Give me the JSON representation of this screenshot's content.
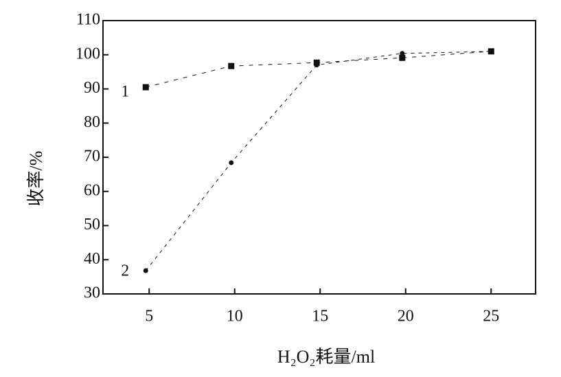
{
  "chart_data": {
    "type": "scatter",
    "x_label": "H₂O₂耗量/ml",
    "y_label": "收率/%",
    "xlim": [
      2.3,
      27.6
    ],
    "ylim": [
      30,
      110
    ],
    "xticks": [
      5,
      10,
      15,
      20,
      25
    ],
    "yticks": [
      30,
      40,
      50,
      60,
      70,
      80,
      90,
      100,
      110
    ],
    "series": [
      {
        "name": "1",
        "color": "#111111",
        "marker": "square",
        "x": [
          4.8,
          9.8,
          14.8,
          19.8,
          25
        ],
        "values": [
          90.5,
          96.7,
          97.7,
          99.1,
          101
        ]
      },
      {
        "name": "2",
        "color": "#111111",
        "marker": "circle",
        "x": [
          4.8,
          9.8,
          14.8,
          19.8,
          25
        ],
        "values": [
          36.8,
          68.4,
          97,
          100.4,
          101
        ]
      }
    ]
  }
}
